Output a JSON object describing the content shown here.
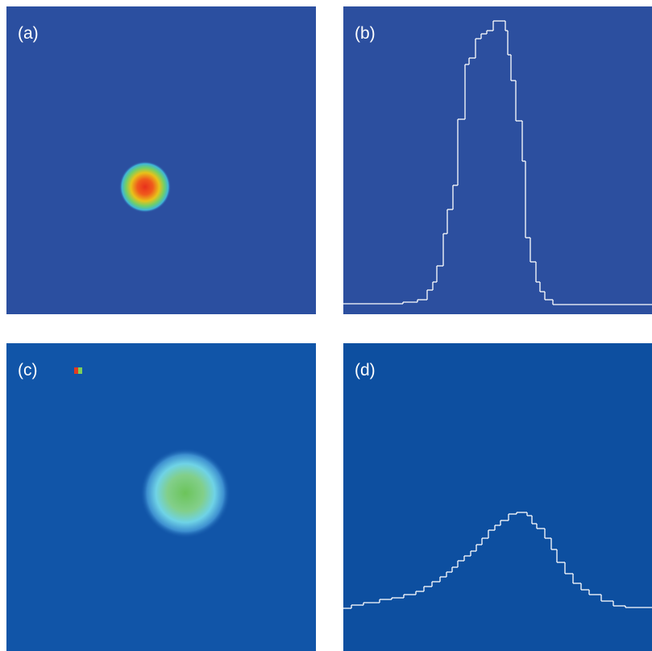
{
  "panels": [
    {
      "label": "(a)"
    },
    {
      "label": "(b)",
      "profile": {
        "type": "line",
        "color": "#ffffff",
        "x": [
          0,
          74,
          92,
          104,
          111,
          116,
          124,
          129,
          136,
          142,
          151,
          156,
          164,
          171,
          178,
          186,
          201,
          204,
          208,
          214,
          222,
          226,
          232,
          239,
          244,
          250,
          260
        ],
        "values": [
          13,
          15,
          18,
          30,
          40,
          60,
          100,
          130,
          160,
          242,
          310,
          318,
          342,
          348,
          352,
          364,
          352,
          322,
          290,
          240,
          190,
          95,
          65,
          40,
          28,
          18,
          12
        ],
        "xlim": [
          0,
          383
        ],
        "ylim": [
          0,
          382
        ]
      }
    },
    {
      "label": "(c)"
    },
    {
      "label": "(d)",
      "profile": {
        "type": "line",
        "color": "#ffffff",
        "x": [
          0,
          10,
          25,
          45,
          60,
          75,
          90,
          100,
          110,
          120,
          128,
          135,
          142,
          150,
          158,
          165,
          172,
          180,
          188,
          195,
          205,
          215,
          228,
          234,
          240,
          250,
          258,
          265,
          275,
          285,
          295,
          305,
          320,
          335,
          350
        ],
        "values": [
          53,
          57,
          60,
          64,
          66,
          70,
          74,
          80,
          86,
          92,
          98,
          104,
          112,
          118,
          124,
          132,
          140,
          150,
          156,
          162,
          170,
          172,
          168,
          158,
          152,
          140,
          126,
          110,
          96,
          84,
          76,
          70,
          62,
          56,
          54
        ],
        "xlim": [
          0,
          383
        ],
        "ylim": [
          0,
          382
        ]
      }
    }
  ]
}
